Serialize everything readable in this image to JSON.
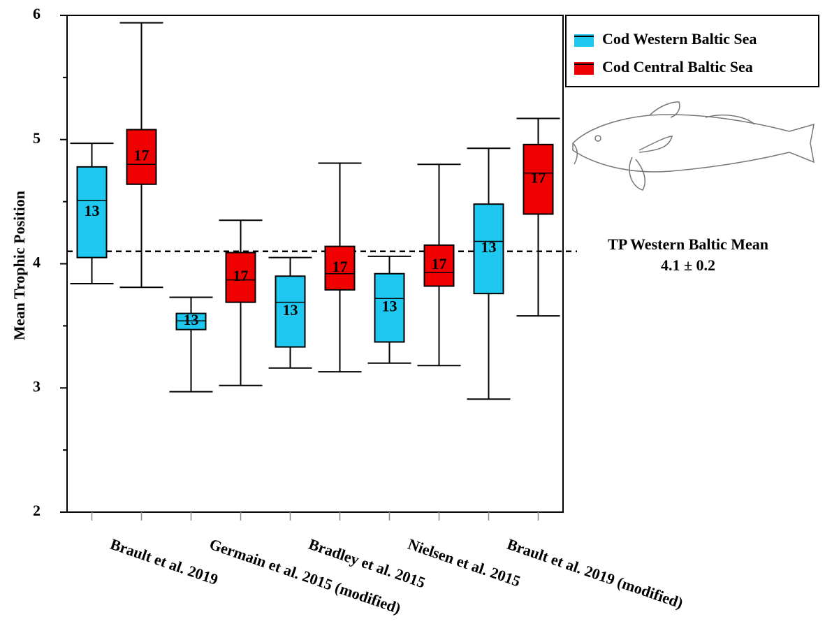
{
  "chart_data": {
    "type": "box",
    "y_label": "Mean Trophic Position",
    "categories": [
      "Brault et al. 2019",
      "Germain et al. 2015 (modified)",
      "Bradley et al. 2015",
      "Nielsen et al. 2015",
      "Brault et al. 2019 (modified)"
    ],
    "series": [
      {
        "name": "Cod Western Baltic Sea",
        "color": "#1ec8f0",
        "n": 13,
        "low": [
          3.84,
          2.97,
          3.16,
          3.2,
          2.91
        ],
        "q1": [
          4.05,
          3.47,
          3.33,
          3.37,
          3.76
        ],
        "median": [
          4.51,
          3.54,
          3.69,
          3.72,
          4.18
        ],
        "q3": [
          4.78,
          3.6,
          3.9,
          3.92,
          4.48
        ],
        "high": [
          4.97,
          3.73,
          4.05,
          4.06,
          4.93
        ]
      },
      {
        "name": "Cod Central Baltic Sea",
        "color": "#f00000",
        "n": 17,
        "low": [
          3.81,
          3.02,
          3.13,
          3.18,
          3.58
        ],
        "q1": [
          4.64,
          3.69,
          3.79,
          3.82,
          4.4
        ],
        "median": [
          4.8,
          3.87,
          3.92,
          3.93,
          4.73
        ],
        "q3": [
          5.08,
          4.09,
          4.14,
          4.15,
          4.96
        ],
        "high": [
          5.94,
          4.35,
          4.81,
          4.8,
          5.17
        ]
      }
    ],
    "reference_line": {
      "value": 4.1,
      "label": "TP Western Baltic Mean",
      "sublabel": "4.1 ± 0.2"
    },
    "ylim": [
      2,
      6
    ],
    "yticks": [
      2,
      3,
      4,
      5,
      6
    ],
    "yminorticks": [
      2.5,
      3.5,
      4.5,
      5.5
    ]
  }
}
